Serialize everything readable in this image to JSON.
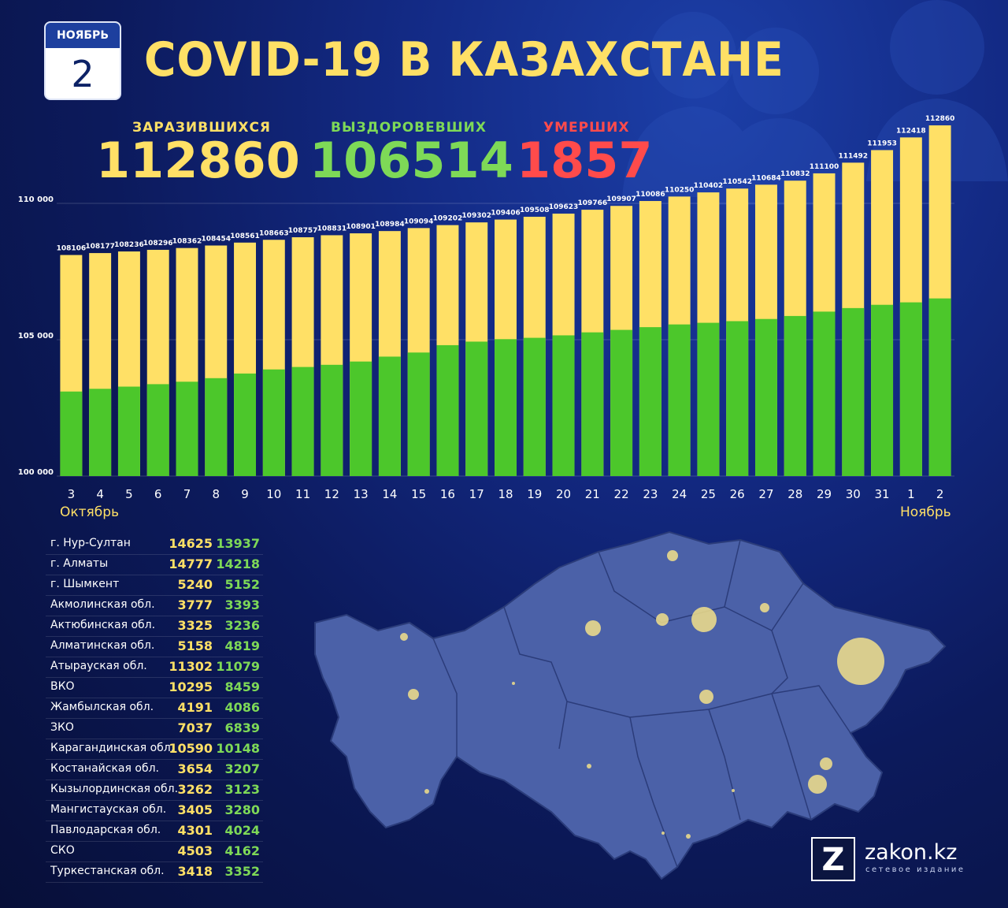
{
  "calendar": {
    "month": "НОЯБРЬ",
    "day": "2"
  },
  "title": "COVID-19 В КАЗАХСТАНЕ",
  "stats": {
    "infected_label": "ЗАРАЗИВШИХСЯ",
    "infected_value": "112860",
    "recovered_label": "ВЫЗДОРОВЕВШИХ",
    "recovered_value": "106514",
    "deaths_label": "УМЕРШИХ",
    "deaths_value": "1857"
  },
  "colors": {
    "infected": "#ffe066",
    "recovered": "#4cc72b",
    "deaths": "#ff4b4b",
    "background": "#0c1a5c"
  },
  "chart_data": {
    "type": "bar",
    "stacked_overlay": true,
    "y_tick_labels": [
      "110 000",
      "105 000",
      "100 000"
    ],
    "y_ticks": [
      110000,
      105000,
      100000
    ],
    "ylim": [
      100000,
      113000
    ],
    "categories": [
      "3",
      "4",
      "5",
      "6",
      "7",
      "8",
      "9",
      "10",
      "11",
      "12",
      "13",
      "14",
      "15",
      "16",
      "17",
      "18",
      "19",
      "20",
      "21",
      "22",
      "23",
      "24",
      "25",
      "26",
      "27",
      "28",
      "29",
      "30",
      "31",
      "1",
      "2"
    ],
    "series": [
      {
        "name": "ЗАРАЗИВШИХСЯ",
        "values": [
          108106,
          108177,
          108236,
          108296,
          108362,
          108454,
          108561,
          108663,
          108757,
          108831,
          108901,
          108984,
          109094,
          109202,
          109302,
          109406,
          109508,
          109623,
          109766,
          109907,
          110086,
          110250,
          110402,
          110542,
          110684,
          110832,
          111100,
          111492,
          111953,
          112418,
          112860
        ]
      },
      {
        "name": "ВЫЗДОРОВЕВШИХ",
        "values": [
          103100,
          103200,
          103280,
          103370,
          103460,
          103590,
          103760,
          103910,
          104000,
          104080,
          104200,
          104380,
          104530,
          104800,
          104930,
          105020,
          105070,
          105160,
          105270,
          105360,
          105460,
          105560,
          105620,
          105680,
          105760,
          105870,
          106030,
          106160,
          106280,
          106370,
          106514
        ]
      }
    ],
    "month_labels": {
      "start": "Октябрь",
      "end": "Ноябрь"
    },
    "grid": true
  },
  "regions": [
    {
      "name": "г. Нур-Султан",
      "infected": "14625",
      "recovered": "13937"
    },
    {
      "name": "г. Алматы",
      "infected": "14777",
      "recovered": "14218"
    },
    {
      "name": "г. Шымкент",
      "infected": "5240",
      "recovered": "5152"
    },
    {
      "name": "Акмолинская обл.",
      "infected": "3777",
      "recovered": "3393"
    },
    {
      "name": "Актюбинская обл.",
      "infected": "3325",
      "recovered": "3236"
    },
    {
      "name": "Алматинская обл.",
      "infected": "5158",
      "recovered": "4819"
    },
    {
      "name": "Атырауская обл.",
      "infected": "11302",
      "recovered": "11079"
    },
    {
      "name": "ВКО",
      "infected": "10295",
      "recovered": "8459"
    },
    {
      "name": "Жамбылская обл.",
      "infected": "4191",
      "recovered": "4086"
    },
    {
      "name": "ЗКО",
      "infected": "7037",
      "recovered": "6839"
    },
    {
      "name": "Карагандинская обл.",
      "infected": "10590",
      "recovered": "10148"
    },
    {
      "name": "Костанайская обл.",
      "infected": "3654",
      "recovered": "3207"
    },
    {
      "name": "Кызылординская обл.",
      "infected": "3262",
      "recovered": "3123"
    },
    {
      "name": "Мангистауская обл.",
      "infected": "3405",
      "recovered": "3280"
    },
    {
      "name": "Павлодарская обл.",
      "infected": "4301",
      "recovered": "4024"
    },
    {
      "name": "СКО",
      "infected": "4503",
      "recovered": "4162"
    },
    {
      "name": "Туркестанская обл.",
      "infected": "3418",
      "recovered": "3352"
    }
  ],
  "logo": {
    "letter": "Z",
    "name": "zakon.kz",
    "subtitle": "сетевое издание"
  }
}
